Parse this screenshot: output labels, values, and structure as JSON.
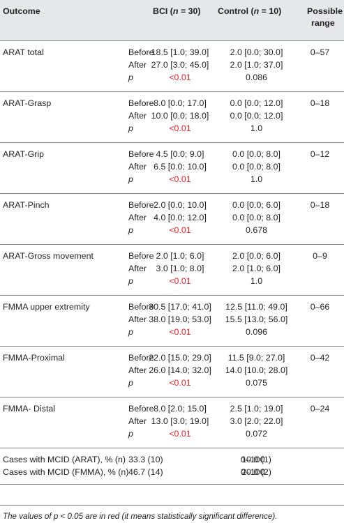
{
  "header": {
    "outcome": "Outcome",
    "bci_prefix": "BCI (",
    "bci_n": "n",
    "bci_suffix": " = 30)",
    "control_prefix": "Control (",
    "control_n": "n",
    "control_suffix": " = 10)",
    "range_line1": "Possible",
    "range_line2": "range"
  },
  "groups": [
    {
      "outcome": "ARAT total",
      "before_label": "Before",
      "after_label": "After",
      "p_label": "p",
      "bci_before": "18.5 [1.0; 39.0]",
      "bci_after": "27.0 [3.0; 45.0]",
      "bci_p": "<0.01",
      "control_before": "2.0 [0.0; 30.0]",
      "control_after": "2.0 [1.0; 37.0]",
      "control_p": "0.086",
      "range": "0–57"
    },
    {
      "outcome": "ARAT-Grasp",
      "before_label": "Before",
      "after_label": "After",
      "p_label": "p",
      "bci_before": "8.0 [0.0; 17.0]",
      "bci_after": "10.0 [0.0; 18.0]",
      "bci_p": "<0.01",
      "control_before": "0.0 [0.0; 12.0]",
      "control_after": "0.0 [0.0; 12.0]",
      "control_p": "1.0",
      "range": "0–18"
    },
    {
      "outcome": "ARAT-Grip",
      "before_label": "Before",
      "after_label": "After",
      "p_label": "p",
      "bci_before": "4.5 [0.0; 9.0]",
      "bci_after": "6.5 [0.0; 10.0]",
      "bci_p": "<0.01",
      "control_before": "0.0 [0.0; 8.0]",
      "control_after": "0.0 [0.0; 8.0]",
      "control_p": "1.0",
      "range": "0–12"
    },
    {
      "outcome": "ARAT-Pinch",
      "before_label": "Before",
      "after_label": "After",
      "p_label": "p",
      "bci_before": "2.0 [0.0; 10.0]",
      "bci_after": "4.0 [0.0; 12.0]",
      "bci_p": "<0.01",
      "control_before": "0.0 [0.0; 6.0]",
      "control_after": "0.0 [0.0; 8.0]",
      "control_p": "0.678",
      "range": "0–18"
    },
    {
      "outcome": "ARAT-Gross movement",
      "before_label": "Before",
      "after_label": "After",
      "p_label": "p",
      "bci_before": "2.0 [1.0; 6.0]",
      "bci_after": "3.0 [1.0; 8.0]",
      "bci_p": "<0.01",
      "control_before": "2.0 [0.0; 6.0]",
      "control_after": "2.0 [1.0; 6.0]",
      "control_p": "1.0",
      "range": "0–9"
    },
    {
      "outcome": "FMMA upper extremity",
      "before_label": "Before",
      "after_label": "After",
      "p_label": "p",
      "bci_before": "30.5 [17.0; 41.0]",
      "bci_after": "38.0 [19.0; 53.0]",
      "bci_p": "<0.01",
      "control_before": "12.5 [11.0; 49.0]",
      "control_after": "15.5 [13.0; 56.0]",
      "control_p": "0.096",
      "range": "0–66"
    },
    {
      "outcome": "FMMA-Proximal",
      "before_label": "Before",
      "after_label": "After",
      "p_label": "p",
      "bci_before": "22.0 [15.0; 29.0]",
      "bci_after": "26.0 [14.0; 32.0]",
      "bci_p": "<0.01",
      "control_before": "11.5 [9.0; 27.0]",
      "control_after": "14.0 [10.0; 28.0]",
      "control_p": "0.075",
      "range": "0–42"
    },
    {
      "outcome": "FMMA- Distal",
      "before_label": "Before",
      "after_label": "After",
      "p_label": "p",
      "bci_before": "8.0 [2.0; 15.0]",
      "bci_after": "13.0 [3.0; 19.0]",
      "bci_p": "<0.01",
      "control_before": "2.5 [1.0; 19.0]",
      "control_after": "3.0 [2.0; 22.0]",
      "control_p": "0.072",
      "range": "0–24"
    }
  ],
  "mcid": [
    {
      "label": "Cases with MCID (ARAT), % (n)",
      "bci": "33.3 (10)",
      "control": "10.0 (1)",
      "range": "0–100"
    },
    {
      "label": "Cases with MCID (FMMA), % (n)",
      "bci": "46.7 (14)",
      "control": "20.0 (2)",
      "range": "0–100"
    }
  ],
  "footnote": {
    "prefix": "The values of ",
    "p": "p",
    "middle": " < 0.05 are in red (it means statistically significant difference)."
  },
  "colors": {
    "significant": "#ed1c24",
    "header_bg": "#e6e7e8",
    "rule": "#808285",
    "text": "#231f20"
  }
}
